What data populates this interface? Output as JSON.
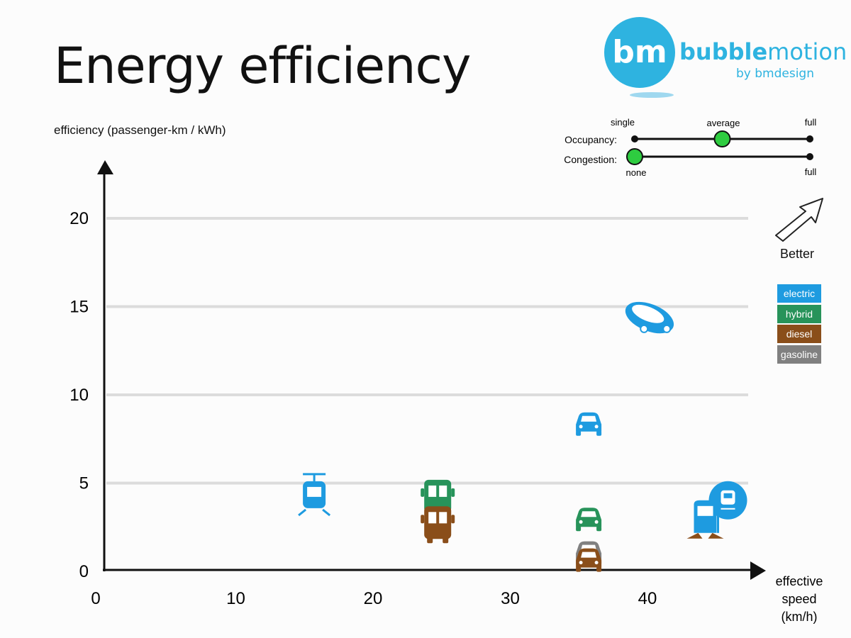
{
  "title": "Energy efficiency",
  "logo": {
    "brand_bold": "bubble",
    "brand_rest": "motion",
    "subtitle": "by bmdesign",
    "mark": "bm"
  },
  "controls": {
    "occupancy": {
      "label": "Occupancy:",
      "min_label": "single",
      "mid_label": "average",
      "max_label": "full",
      "value": 0.5
    },
    "congestion": {
      "label": "Congestion:",
      "min_label": "none",
      "max_label": "full",
      "value": 0.0
    }
  },
  "better_label": "Better",
  "colors": {
    "electric": "#1e9be0",
    "hybrid": "#27935a",
    "diesel": "#8a4e1a",
    "gasoline": "#808080"
  },
  "legend": [
    {
      "key": "electric",
      "label": "electric"
    },
    {
      "key": "hybrid",
      "label": "hybrid"
    },
    {
      "key": "diesel",
      "label": "diesel"
    },
    {
      "key": "gasoline",
      "label": "gasoline"
    }
  ],
  "chart_data": {
    "type": "scatter",
    "ylabel": "efficiency (passenger-km / kWh)",
    "xlabel": "effective speed (km/h)",
    "xlabel_lines": [
      "effective",
      "speed",
      "(km/h)"
    ],
    "xlim": [
      0,
      47
    ],
    "ylim": [
      0,
      22
    ],
    "xticks": [
      0,
      10,
      20,
      30,
      40
    ],
    "yticks": [
      0,
      5,
      10,
      15,
      20
    ],
    "grid": true,
    "points": [
      {
        "vehicle": "tram",
        "fuel": "electric",
        "x": 15.3,
        "y": 4.3
      },
      {
        "vehicle": "bus",
        "fuel": "hybrid",
        "x": 24.3,
        "y": 4.3
      },
      {
        "vehicle": "bus",
        "fuel": "diesel",
        "x": 24.3,
        "y": 2.8
      },
      {
        "vehicle": "car",
        "fuel": "electric",
        "x": 35.3,
        "y": 8.4
      },
      {
        "vehicle": "car",
        "fuel": "hybrid",
        "x": 35.3,
        "y": 3.0
      },
      {
        "vehicle": "car",
        "fuel": "gasoline",
        "x": 35.3,
        "y": 1.1
      },
      {
        "vehicle": "car",
        "fuel": "diesel",
        "x": 35.3,
        "y": 0.7
      },
      {
        "vehicle": "bubble",
        "fuel": "electric",
        "x": 39.7,
        "y": 14.3
      },
      {
        "vehicle": "train",
        "fuel": "electric",
        "x": 43.8,
        "y": 2.9
      }
    ]
  }
}
